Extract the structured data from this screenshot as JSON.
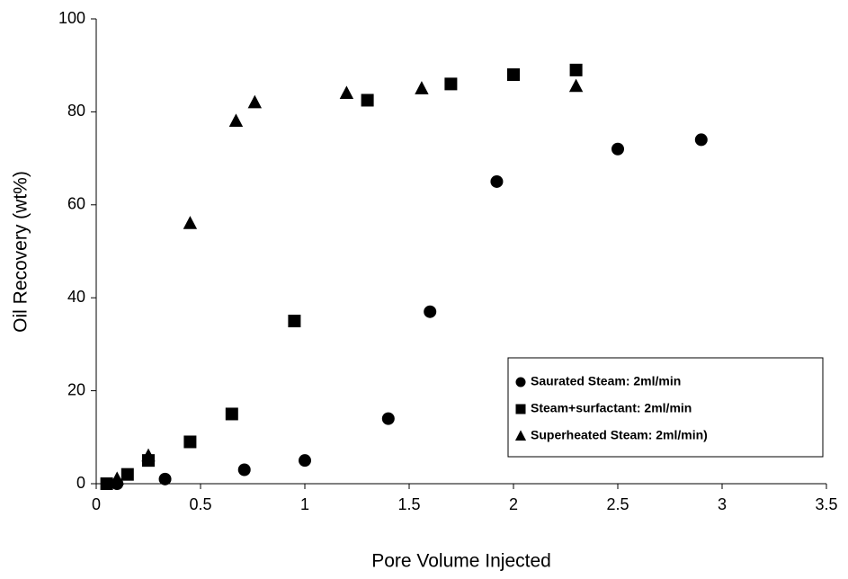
{
  "chart_data": {
    "type": "scatter",
    "xlabel": "Pore Volume Injected",
    "ylabel": "Oil Recovery  (wt%)",
    "xlim": [
      0,
      3.5
    ],
    "xticks": [
      0,
      0.5,
      1,
      1.5,
      2,
      2.5,
      3,
      3.5
    ],
    "ylim": [
      0,
      100
    ],
    "yticks": [
      0,
      20,
      40,
      60,
      80,
      100
    ],
    "grid": false,
    "legend": "lower right",
    "series": [
      {
        "name": "Saurated Steam:  2ml/min",
        "color": "#000000",
        "marker": "circle",
        "x": [
          0.1,
          0.33,
          0.71,
          1.0,
          1.4,
          1.6,
          1.92,
          2.5,
          2.9
        ],
        "values": [
          0,
          1,
          3,
          5,
          14,
          37,
          65,
          72,
          74
        ]
      },
      {
        "name": "Steam+surfactant:  2ml/min",
        "color": "#000000",
        "marker": "square",
        "x": [
          0.05,
          0.15,
          0.25,
          0.45,
          0.65,
          0.95,
          1.3,
          1.7,
          2.0,
          2.3
        ],
        "values": [
          0,
          2,
          5,
          9,
          15,
          35,
          82.5,
          86,
          88,
          89
        ]
      },
      {
        "name": "Superheated Steam: 2ml/min)",
        "color": "#000000",
        "marker": "triangle",
        "x": [
          0.1,
          0.25,
          0.45,
          0.67,
          0.76,
          1.2,
          1.56,
          2.3
        ],
        "values": [
          1,
          6,
          56,
          78,
          82,
          84,
          85,
          85.5
        ]
      }
    ]
  }
}
